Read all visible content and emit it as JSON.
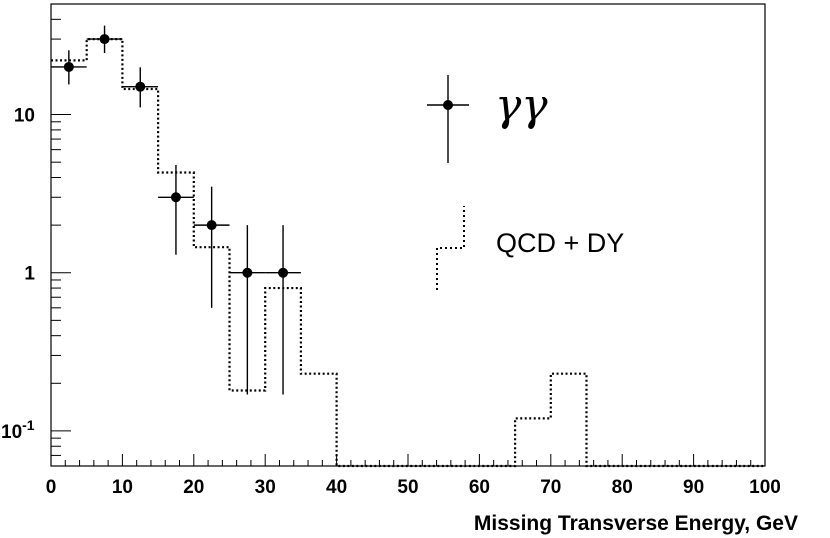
{
  "chart_data": {
    "type": "histogram",
    "title": "",
    "xlabel": "Missing Transverse Energy, GeV",
    "ylabel": "",
    "xscale": "linear",
    "yscale": "log",
    "xlim": [
      0,
      100
    ],
    "ylim": [
      0.06,
      50
    ],
    "grid": false,
    "x_ticks": [
      "0",
      "10",
      "20",
      "30",
      "40",
      "50",
      "60",
      "70",
      "80",
      "90",
      "100"
    ],
    "y_ticks": [
      {
        "value": 0.1,
        "base": "10",
        "exp": "-1"
      },
      {
        "value": 1,
        "base": "1",
        "exp": ""
      },
      {
        "value": 10,
        "base": "10",
        "exp": ""
      }
    ],
    "legend_position": "top-right",
    "series": [
      {
        "name": "γγ",
        "style": "points-with-errors",
        "x": [
          2.5,
          7.5,
          12.5,
          17.5,
          22.5,
          27.5,
          32.5
        ],
        "xerr": 2.5,
        "y": [
          20,
          30,
          15,
          3,
          2,
          1,
          1
        ],
        "yerr_low": [
          4.5,
          5.5,
          3.9,
          1.7,
          1.4,
          0.83,
          0.83
        ],
        "yerr_high": [
          5.5,
          6.5,
          4.9,
          1.8,
          1.5,
          1.0,
          1.0
        ]
      },
      {
        "name": "QCD + DY",
        "style": "dotted-step-histogram",
        "bin_edges": [
          0,
          5,
          10,
          15,
          20,
          25,
          30,
          35,
          40,
          45,
          50,
          55,
          60,
          65,
          70,
          75,
          80,
          85,
          90,
          95,
          100
        ],
        "values": [
          22,
          30,
          14.5,
          4.3,
          1.45,
          0.18,
          0.8,
          0.23,
          0,
          0,
          0,
          0,
          0,
          0.12,
          0.23,
          0,
          0,
          0,
          0,
          0
        ]
      }
    ],
    "legend": {
      "points_label": "γγ",
      "hist_label": "QCD + DY"
    }
  }
}
